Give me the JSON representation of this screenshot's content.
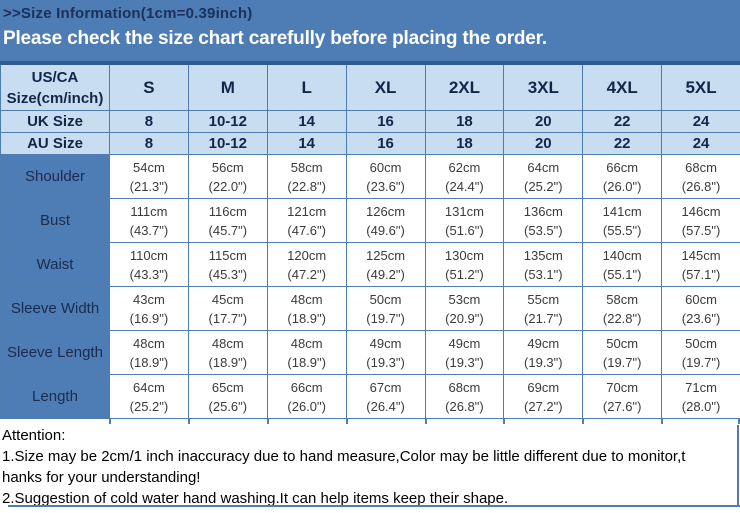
{
  "banner": {
    "title": ">>Size Information(1cm=0.39inch)",
    "subtitle": "Please check the size chart carefully before placing the order."
  },
  "table": {
    "corner_line1": "US/CA",
    "corner_line2": "Size(cm/inch)",
    "size_columns": [
      "S",
      "M",
      "L",
      "XL",
      "2XL",
      "3XL",
      "4XL",
      "5XL"
    ],
    "uk_row": {
      "label": "UK Size",
      "values": [
        "8",
        "10-12",
        "14",
        "16",
        "18",
        "20",
        "22",
        "24"
      ]
    },
    "au_row": {
      "label": "AU Size",
      "values": [
        "8",
        "10-12",
        "14",
        "16",
        "18",
        "20",
        "22",
        "24"
      ]
    },
    "measurements": [
      {
        "label": "Shoulder",
        "cm": [
          "54cm",
          "56cm",
          "58cm",
          "60cm",
          "62cm",
          "64cm",
          "66cm",
          "68cm"
        ],
        "inch": [
          "(21.3\")",
          "(22.0\")",
          "(22.8\")",
          "(23.6\")",
          "(24.4\")",
          "(25.2\")",
          "(26.0\")",
          "(26.8\")"
        ]
      },
      {
        "label": "Bust",
        "cm": [
          "111cm",
          "116cm",
          "121cm",
          "126cm",
          "131cm",
          "136cm",
          "141cm",
          "146cm"
        ],
        "inch": [
          "(43.7\")",
          "(45.7\")",
          "(47.6\")",
          "(49.6\")",
          "(51.6\")",
          "(53.5\")",
          "(55.5\")",
          "(57.5\")"
        ]
      },
      {
        "label": "Waist",
        "cm": [
          "110cm",
          "115cm",
          "120cm",
          "125cm",
          "130cm",
          "135cm",
          "140cm",
          "145cm"
        ],
        "inch": [
          "(43.3\")",
          "(45.3\")",
          "(47.2\")",
          "(49.2\")",
          "(51.2\")",
          "(53.1\")",
          "(55.1\")",
          "(57.1\")"
        ]
      },
      {
        "label": "Sleeve Width",
        "cm": [
          "43cm",
          "45cm",
          "48cm",
          "50cm",
          "53cm",
          "55cm",
          "58cm",
          "60cm"
        ],
        "inch": [
          "(16.9\")",
          "(17.7\")",
          "(18.9\")",
          "(19.7\")",
          "(20.9\")",
          "(21.7\")",
          "(22.8\")",
          "(23.6\")"
        ]
      },
      {
        "label": "Sleeve Length",
        "cm": [
          "48cm",
          "48cm",
          "48cm",
          "49cm",
          "49cm",
          "49cm",
          "50cm",
          "50cm"
        ],
        "inch": [
          "(18.9\")",
          "(18.9\")",
          "(18.9\")",
          "(19.3\")",
          "(19.3\")",
          "(19.3\")",
          "(19.7\")",
          "(19.7\")"
        ]
      },
      {
        "label": "Length",
        "cm": [
          "64cm",
          "65cm",
          "66cm",
          "67cm",
          "68cm",
          "69cm",
          "70cm",
          "71cm"
        ],
        "inch": [
          "(25.2\")",
          "(25.6\")",
          "(26.0\")",
          "(26.4\")",
          "(26.8\")",
          "(27.2\")",
          "(27.6\")",
          "(28.0\")"
        ]
      }
    ]
  },
  "attention": {
    "heading": "Attention:",
    "line1": "1.Size may be 2cm/1 inch inaccuracy due to hand measure,Color may be little different due to monitor,t",
    "line2": "hanks for your understanding!",
    "line3": "2.Suggestion of cold water hand washing.It can help items keep their shape."
  },
  "colors": {
    "banner_background": "#4E7DB5",
    "banner_title_text": "#1B3159",
    "banner_subtitle_text": "#FFFFFF",
    "table_border": "#4F7DB0",
    "table_top_border": "#2F5A92",
    "header_cell_background": "#C9DDF1",
    "header_cell_text": "#13264A",
    "row_label_background": "#4E7DB5",
    "data_cell_text": "#3B3B3B"
  }
}
